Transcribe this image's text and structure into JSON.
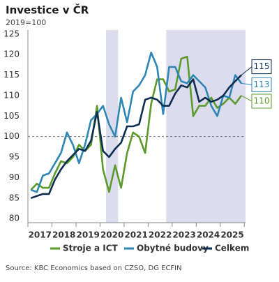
{
  "chart_data": {
    "type": "line",
    "title": "Investice v ČR",
    "subtitle": "2019=100",
    "x": [
      2017.125,
      2017.375,
      2017.625,
      2017.875,
      2018.125,
      2018.375,
      2018.625,
      2018.875,
      2019.125,
      2019.375,
      2019.625,
      2019.875,
      2020.125,
      2020.375,
      2020.625,
      2020.875,
      2021.125,
      2021.375,
      2021.625,
      2021.875,
      2022.125,
      2022.375,
      2022.625,
      2022.875,
      2023.125,
      2023.375,
      2023.625,
      2023.875,
      2024.125,
      2024.375,
      2024.625,
      2024.875,
      2025.125,
      2025.375,
      2025.625,
      2025.875
    ],
    "series": [
      {
        "name": "Stroje a ICT",
        "color": "#5b9a2b",
        "values": [
          87,
          88.5,
          87.5,
          87.5,
          91,
          94,
          93.5,
          95,
          98,
          96.5,
          98,
          107.5,
          92,
          86.5,
          93,
          87.5,
          96,
          101,
          100,
          96,
          108,
          114,
          114,
          111,
          111.5,
          119,
          119.5,
          105,
          107.5,
          107.5,
          109.5,
          107,
          108,
          109.5,
          108,
          110
        ]
      },
      {
        "name": "Obytné budovy",
        "color": "#2e86b4",
        "values": [
          87,
          86.5,
          90.5,
          91,
          93.5,
          96,
          101,
          98,
          93.5,
          98,
          104,
          105.5,
          107.5,
          103,
          100,
          109.5,
          103.5,
          111,
          112.5,
          115,
          120.5,
          117,
          105.5,
          117,
          117,
          113.5,
          113,
          115,
          113.5,
          112,
          107.5,
          105,
          110,
          109.5,
          115,
          113
        ]
      },
      {
        "name": "Celkem",
        "color": "#0d2d52",
        "values": [
          85,
          85.5,
          86,
          86,
          89.5,
          92,
          94,
          95.5,
          97,
          96.5,
          99,
          106,
          96.5,
          95,
          97,
          98.5,
          102.5,
          102.5,
          103,
          109,
          109.5,
          109,
          107.5,
          107.5,
          110.5,
          112.5,
          112,
          114,
          108.5,
          109.5,
          108.5,
          109,
          110,
          112,
          113.5,
          115
        ]
      }
    ],
    "xlim": [
      2017,
      2026.05
    ],
    "xticks": [
      {
        "value": 2017.5,
        "label": "2017"
      },
      {
        "value": 2018.5,
        "label": "2018"
      },
      {
        "value": 2019.5,
        "label": "2019"
      },
      {
        "value": 2020.5,
        "label": "2020"
      },
      {
        "value": 2021.5,
        "label": "2021"
      },
      {
        "value": 2022.5,
        "label": "2022"
      },
      {
        "value": 2023.5,
        "label": "2023"
      },
      {
        "value": 2024.5,
        "label": "2024"
      },
      {
        "value": 2025.5,
        "label": "2025"
      }
    ],
    "ylim": [
      79,
      126
    ],
    "yticks": [
      80,
      85,
      90,
      95,
      100,
      105,
      110,
      115,
      120,
      125
    ],
    "reference_line": 100,
    "shaded_periods": [
      [
        2020.25,
        2020.75
      ],
      [
        2022.75,
        2026.05
      ]
    ],
    "shade_color": "#dcdcee",
    "source": "Source: KBC Economics based on CZSO, DG ECFIN"
  }
}
